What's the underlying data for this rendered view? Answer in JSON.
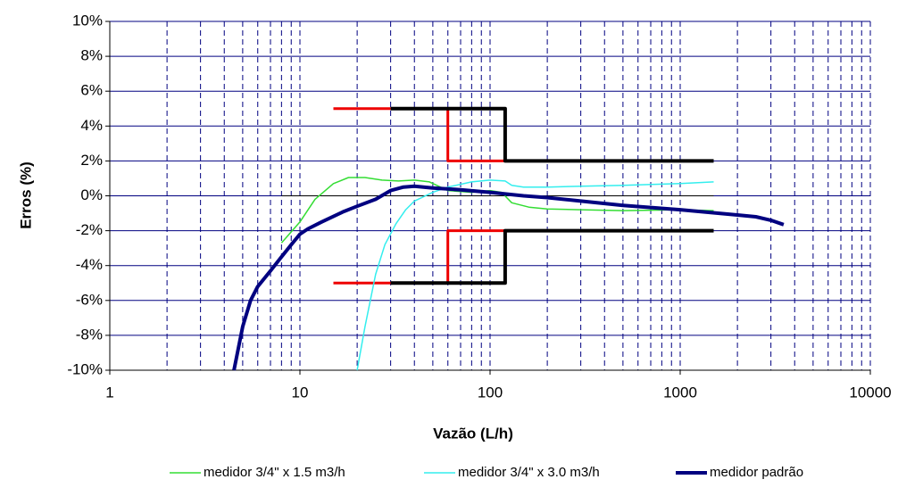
{
  "chart_data": {
    "type": "line",
    "xlabel": "Vazão (L/h)",
    "ylabel": "Erros (%)",
    "xscale": "log",
    "grid": true,
    "xlim": [
      1,
      10000
    ],
    "xticks": [
      1,
      10,
      100,
      1000,
      10000
    ],
    "xminor_ticks": [
      2,
      3,
      4,
      5,
      6,
      7,
      8,
      9,
      20,
      30,
      40,
      50,
      60,
      70,
      80,
      90,
      200,
      300,
      400,
      500,
      600,
      700,
      800,
      900,
      2000,
      3000,
      4000,
      5000,
      6000,
      7000,
      8000,
      9000
    ],
    "ylim": [
      -10,
      10
    ],
    "yticks": [
      {
        "value": -10,
        "label": "-10%"
      },
      {
        "value": -8,
        "label": "-8%"
      },
      {
        "value": -6,
        "label": "-6%"
      },
      {
        "value": -4,
        "label": "-4%"
      },
      {
        "value": -2,
        "label": "-2%"
      },
      {
        "value": 0,
        "label": "0%"
      },
      {
        "value": 2,
        "label": "2%"
      },
      {
        "value": 4,
        "label": "4%"
      },
      {
        "value": 6,
        "label": "6%"
      },
      {
        "value": 8,
        "label": "8%"
      },
      {
        "value": 10,
        "label": "10%"
      }
    ],
    "legend": "bottom",
    "series": [
      {
        "name": "medidor 3/4\" x 1.5 m3/h",
        "color": "#33dd33",
        "width": 1.5,
        "x": [
          8,
          10,
          12,
          15,
          18,
          22,
          27,
          33,
          40,
          48,
          60,
          80,
          100,
          115,
          130,
          160,
          200,
          300,
          500,
          1000,
          1500
        ],
        "values": [
          -2.7,
          -1.5,
          -0.2,
          0.7,
          1.05,
          1.05,
          0.9,
          0.85,
          0.9,
          0.8,
          0.3,
          0.2,
          0.3,
          0.2,
          -0.4,
          -0.65,
          -0.75,
          -0.8,
          -0.85,
          -0.8,
          -0.85
        ]
      },
      {
        "name": "medidor 3/4\" x 3.0 m3/h",
        "color": "#33eeee",
        "width": 1.5,
        "x": [
          20,
          22,
          25,
          28,
          32,
          36,
          40,
          50,
          60,
          80,
          100,
          120,
          130,
          150,
          200,
          300,
          500,
          1000,
          1500
        ],
        "values": [
          -10,
          -7.5,
          -4.5,
          -2.8,
          -1.6,
          -0.8,
          -0.3,
          0.2,
          0.5,
          0.8,
          0.9,
          0.85,
          0.6,
          0.5,
          0.5,
          0.55,
          0.6,
          0.7,
          0.8
        ]
      },
      {
        "name": "medidor padrão",
        "color": "#000080",
        "width": 4,
        "x": [
          4.5,
          5,
          5.5,
          6,
          7,
          8,
          9,
          10,
          11,
          13,
          17,
          20,
          25,
          30,
          35,
          40,
          50,
          70,
          100,
          150,
          200,
          300,
          500,
          1000,
          2000,
          2500,
          3000,
          3500
        ],
        "values": [
          -10,
          -7.5,
          -6,
          -5.2,
          -4.3,
          -3.5,
          -2.8,
          -2.2,
          -1.9,
          -1.5,
          -0.9,
          -0.6,
          -0.2,
          0.3,
          0.5,
          0.55,
          0.45,
          0.35,
          0.2,
          0,
          -0.1,
          -0.3,
          -0.55,
          -0.8,
          -1.1,
          -1.2,
          -1.4,
          -1.65
        ]
      }
    ],
    "reference_lines": [
      {
        "color": "#000000",
        "width": 1,
        "x": [
          8,
          1500
        ],
        "values": [
          0,
          0
        ]
      },
      {
        "color": "#ee0000",
        "width": 3,
        "x": [
          15,
          30
        ],
        "values": [
          5,
          5
        ]
      },
      {
        "color": "#ee0000",
        "width": 3,
        "x": [
          60,
          60,
          120
        ],
        "values": [
          5,
          2,
          2
        ]
      },
      {
        "color": "#000000",
        "width": 4,
        "x": [
          30,
          120,
          120,
          1500
        ],
        "values": [
          5,
          5,
          2,
          2
        ]
      },
      {
        "color": "#ee0000",
        "width": 3,
        "x": [
          15,
          30
        ],
        "values": [
          -5,
          -5
        ]
      },
      {
        "color": "#ee0000",
        "width": 3,
        "x": [
          60,
          60,
          120
        ],
        "values": [
          -5,
          -2,
          -2
        ]
      },
      {
        "color": "#000000",
        "width": 4,
        "x": [
          30,
          120,
          120,
          1500
        ],
        "values": [
          -5,
          -5,
          -2,
          -2
        ]
      }
    ]
  }
}
